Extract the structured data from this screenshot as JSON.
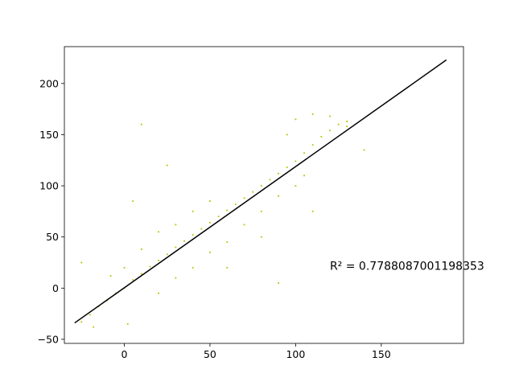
{
  "chart_data": {
    "type": "scatter",
    "title": "",
    "xlabel": "",
    "ylabel": "",
    "xlim": [
      -35,
      198
    ],
    "ylim": [
      -54,
      236
    ],
    "x_ticks": [
      0,
      50,
      100,
      150
    ],
    "y_ticks": [
      -50,
      0,
      50,
      100,
      150,
      200
    ],
    "x_tick_labels": [
      "0",
      "50",
      "100",
      "150"
    ],
    "y_tick_labels": [
      "−50",
      "0",
      "50",
      "100",
      "150",
      "200"
    ],
    "grid": false,
    "legend": "none",
    "series": [
      {
        "kind": "points",
        "color": "#bfbf00",
        "approx_count": 60000,
        "x_range": [
          -28,
          140
        ],
        "y_range": [
          -40,
          182
        ],
        "points": [
          [
            -25,
            -33
          ],
          [
            -20,
            -26
          ],
          [
            -15,
            -18
          ],
          [
            -10,
            -12
          ],
          [
            -5,
            -5
          ],
          [
            0,
            0
          ],
          [
            5,
            8
          ],
          [
            10,
            14
          ],
          [
            15,
            21
          ],
          [
            20,
            27
          ],
          [
            25,
            33
          ],
          [
            30,
            40
          ],
          [
            35,
            46
          ],
          [
            40,
            52
          ],
          [
            45,
            58
          ],
          [
            50,
            64
          ],
          [
            55,
            70
          ],
          [
            60,
            76
          ],
          [
            65,
            82
          ],
          [
            70,
            88
          ],
          [
            75,
            94
          ],
          [
            80,
            100
          ],
          [
            85,
            106
          ],
          [
            90,
            112
          ],
          [
            95,
            118
          ],
          [
            100,
            124
          ],
          [
            105,
            132
          ],
          [
            110,
            140
          ],
          [
            115,
            148
          ],
          [
            120,
            154
          ],
          [
            125,
            160
          ],
          [
            130,
            163
          ],
          [
            -18,
            -38
          ],
          [
            -8,
            12
          ],
          [
            0,
            20
          ],
          [
            10,
            38
          ],
          [
            20,
            55
          ],
          [
            30,
            62
          ],
          [
            40,
            75
          ],
          [
            50,
            85
          ],
          [
            20,
            -5
          ],
          [
            30,
            10
          ],
          [
            40,
            20
          ],
          [
            50,
            35
          ],
          [
            60,
            45
          ],
          [
            70,
            62
          ],
          [
            80,
            75
          ],
          [
            90,
            90
          ],
          [
            100,
            100
          ],
          [
            105,
            110
          ],
          [
            95,
            150
          ],
          [
            100,
            165
          ],
          [
            110,
            170
          ],
          [
            120,
            168
          ],
          [
            130,
            158
          ],
          [
            10,
            160
          ],
          [
            60,
            20
          ],
          [
            90,
            5
          ],
          [
            5,
            85
          ],
          [
            25,
            120
          ],
          [
            80,
            50
          ],
          [
            110,
            75
          ],
          [
            140,
            135
          ],
          [
            2,
            -35
          ],
          [
            -25,
            25
          ]
        ]
      },
      {
        "kind": "line",
        "color": "#000000",
        "x": [
          -29,
          188
        ],
        "y": [
          -34,
          223
        ]
      }
    ],
    "annotations": [
      {
        "text": "R² = 0.7788087001198353",
        "x": 120,
        "y": 18
      }
    ]
  }
}
